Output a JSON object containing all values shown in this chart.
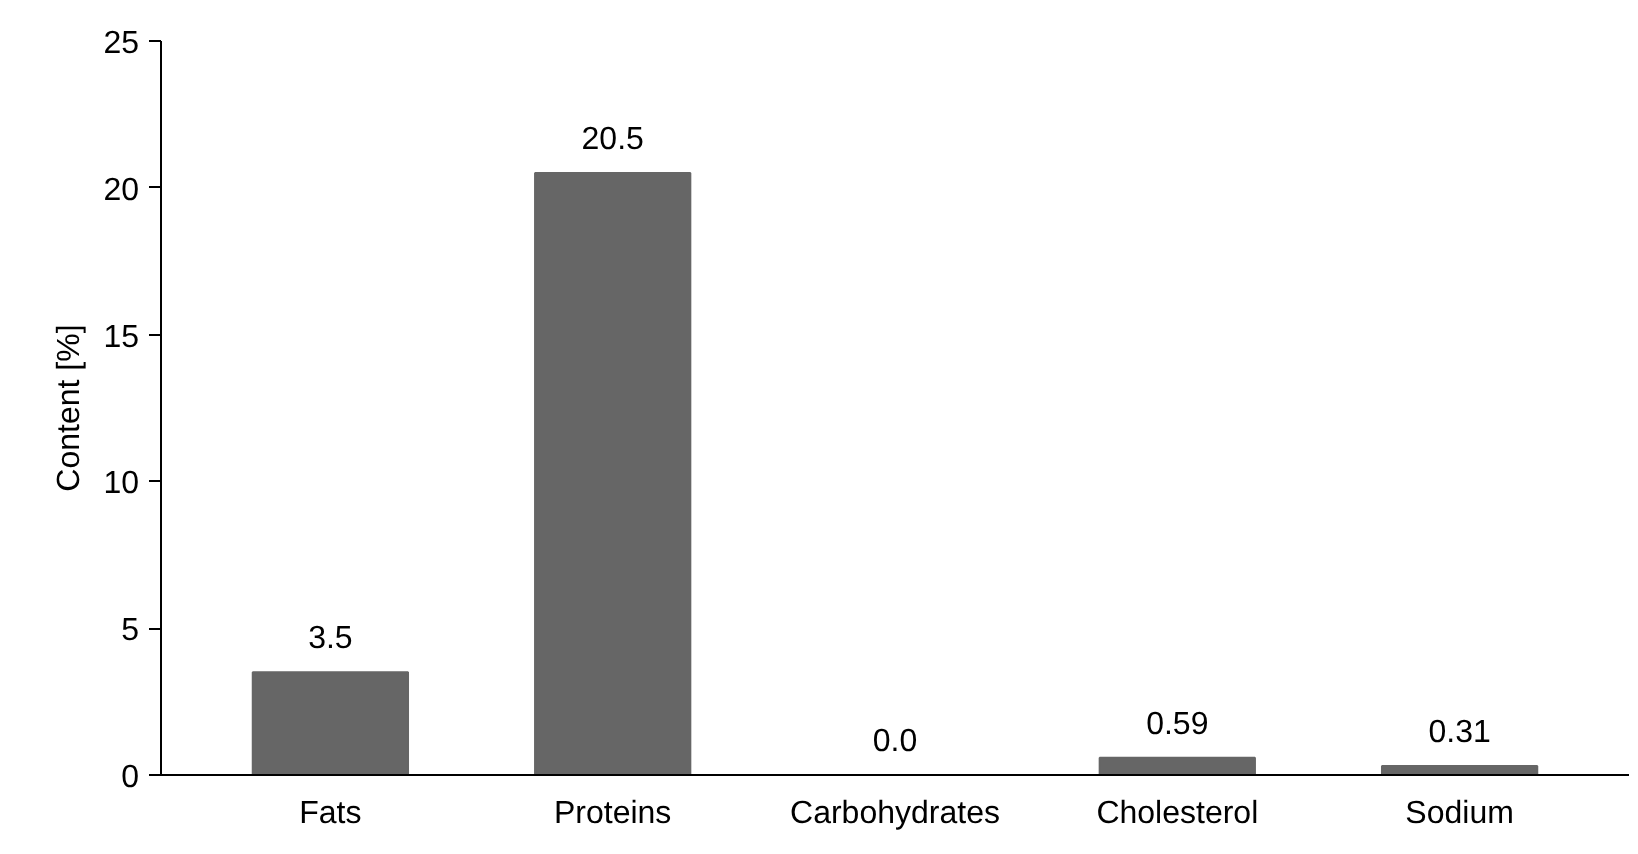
{
  "chart_data": {
    "type": "bar",
    "ylabel": "Content [%]",
    "categories": [
      "Fats",
      "Proteins",
      "Carbohydrates",
      "Cholesterol",
      "Sodium"
    ],
    "values": [
      3.5,
      20.5,
      0.0,
      0.59,
      0.31
    ],
    "value_labels": [
      "3.5",
      "20.5",
      "0.0",
      "0.59",
      "0.31"
    ],
    "color": "#666666",
    "ylim": [
      0,
      25
    ],
    "yticks": [
      0,
      5,
      10,
      15,
      20,
      25
    ],
    "grid": false
  }
}
